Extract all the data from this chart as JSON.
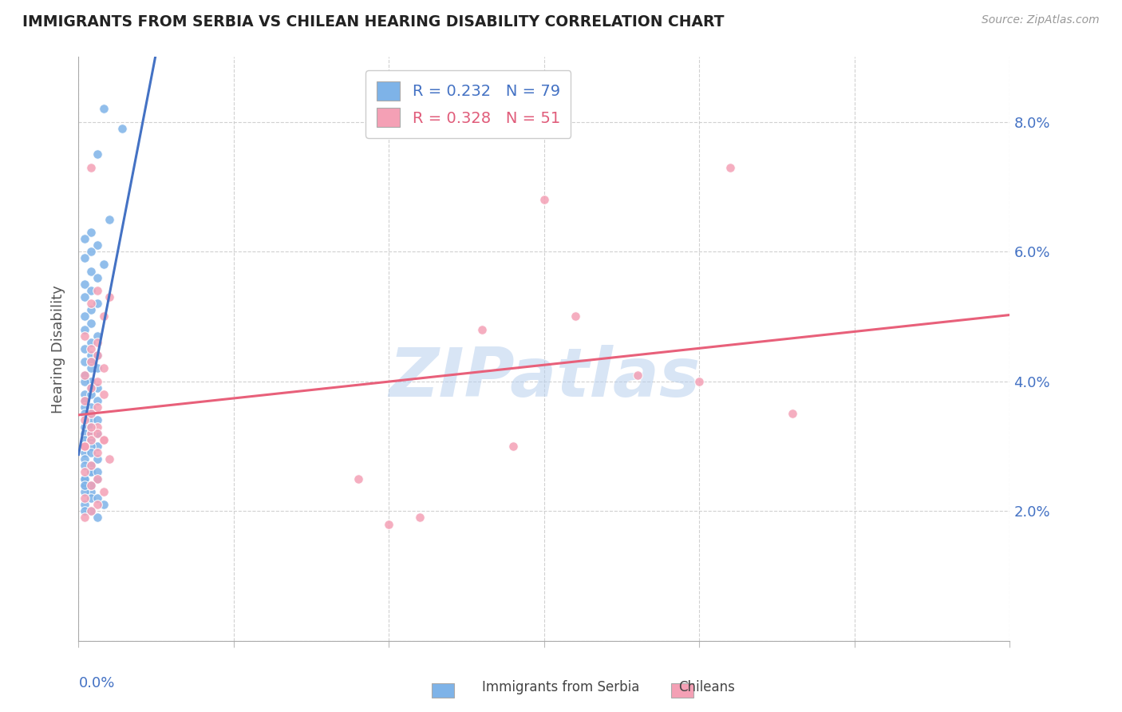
{
  "title": "IMMIGRANTS FROM SERBIA VS CHILEAN HEARING DISABILITY CORRELATION CHART",
  "source": "Source: ZipAtlas.com",
  "ylabel": "Hearing Disability",
  "xmin": 0.0,
  "xmax": 0.15,
  "ymin": 0.0,
  "ymax": 0.09,
  "r_serbia": 0.232,
  "n_serbia": 79,
  "r_chilean": 0.328,
  "n_chilean": 51,
  "serbia_color": "#7eb3e8",
  "chilean_color": "#f4a0b5",
  "trendline_serbia_color": "#4472c4",
  "trendline_chilean_color": "#e8607a",
  "trendline_dashed_color": "#a8c8e8",
  "watermark": "ZIPatlas",
  "serbia_x": [
    0.004,
    0.007,
    0.003,
    0.005,
    0.002,
    0.001,
    0.003,
    0.002,
    0.001,
    0.004,
    0.002,
    0.003,
    0.001,
    0.002,
    0.001,
    0.003,
    0.002,
    0.001,
    0.002,
    0.001,
    0.003,
    0.002,
    0.001,
    0.002,
    0.003,
    0.001,
    0.002,
    0.003,
    0.002,
    0.001,
    0.002,
    0.001,
    0.003,
    0.002,
    0.001,
    0.002,
    0.001,
    0.003,
    0.002,
    0.001,
    0.002,
    0.001,
    0.002,
    0.003,
    0.001,
    0.002,
    0.001,
    0.003,
    0.002,
    0.001,
    0.002,
    0.003,
    0.001,
    0.002,
    0.001,
    0.002,
    0.003,
    0.001,
    0.002,
    0.001,
    0.002,
    0.001,
    0.003,
    0.002,
    0.001,
    0.002,
    0.001,
    0.002,
    0.003,
    0.001,
    0.004,
    0.002,
    0.001,
    0.003,
    0.002,
    0.001,
    0.002,
    0.001,
    0.003
  ],
  "serbia_y": [
    0.082,
    0.079,
    0.075,
    0.065,
    0.063,
    0.062,
    0.061,
    0.06,
    0.059,
    0.058,
    0.057,
    0.056,
    0.055,
    0.054,
    0.053,
    0.052,
    0.051,
    0.05,
    0.049,
    0.048,
    0.047,
    0.046,
    0.045,
    0.044,
    0.044,
    0.043,
    0.043,
    0.042,
    0.042,
    0.041,
    0.04,
    0.04,
    0.039,
    0.039,
    0.038,
    0.038,
    0.037,
    0.037,
    0.036,
    0.036,
    0.035,
    0.035,
    0.034,
    0.034,
    0.033,
    0.033,
    0.032,
    0.032,
    0.032,
    0.031,
    0.031,
    0.03,
    0.03,
    0.03,
    0.029,
    0.029,
    0.028,
    0.028,
    0.027,
    0.027,
    0.026,
    0.025,
    0.025,
    0.024,
    0.024,
    0.023,
    0.023,
    0.022,
    0.022,
    0.021,
    0.021,
    0.02,
    0.02,
    0.019,
    0.024,
    0.025,
    0.026,
    0.024,
    0.026
  ],
  "chilean_x": [
    0.002,
    0.003,
    0.002,
    0.004,
    0.001,
    0.003,
    0.002,
    0.005,
    0.003,
    0.002,
    0.004,
    0.001,
    0.003,
    0.002,
    0.004,
    0.001,
    0.003,
    0.002,
    0.001,
    0.003,
    0.002,
    0.004,
    0.001,
    0.003,
    0.005,
    0.002,
    0.001,
    0.003,
    0.002,
    0.004,
    0.001,
    0.003,
    0.002,
    0.001,
    0.002,
    0.003,
    0.001,
    0.002,
    0.004,
    0.001,
    0.075,
    0.105,
    0.065,
    0.115,
    0.09,
    0.055,
    0.08,
    0.1,
    0.07,
    0.045,
    0.05
  ],
  "chilean_y": [
    0.073,
    0.054,
    0.052,
    0.05,
    0.047,
    0.046,
    0.045,
    0.053,
    0.044,
    0.043,
    0.042,
    0.041,
    0.04,
    0.039,
    0.038,
    0.037,
    0.036,
    0.035,
    0.034,
    0.033,
    0.032,
    0.031,
    0.03,
    0.029,
    0.028,
    0.027,
    0.026,
    0.025,
    0.024,
    0.023,
    0.022,
    0.021,
    0.02,
    0.019,
    0.031,
    0.032,
    0.03,
    0.033,
    0.031,
    0.03,
    0.068,
    0.073,
    0.048,
    0.035,
    0.041,
    0.019,
    0.05,
    0.04,
    0.03,
    0.025,
    0.018
  ]
}
